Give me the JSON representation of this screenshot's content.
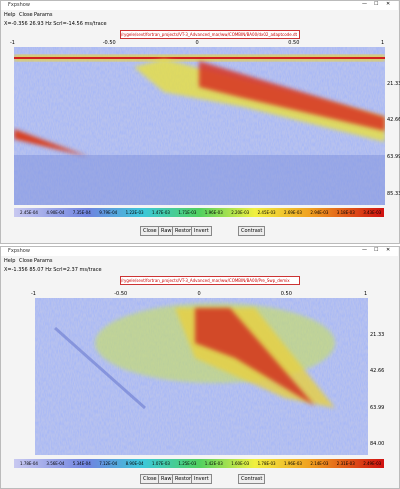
{
  "windows": [
    {
      "title": "Fxpshow",
      "menu": [
        "Help",
        "Close",
        "Params"
      ],
      "status": "X=-0.356  26.93 Hz  Scrl=-14.56 ms/trace",
      "path": "/rygele/sevt/fortran_projects/VT-3_Advanced_mar/ww/COMBIN/BA00/dx02_adaptcode.dt",
      "x_ticks": [
        "-1",
        "-0.50",
        "0",
        "0.50",
        "1"
      ],
      "y_ticks": [
        "21.33",
        "42.66",
        "63.99",
        "85.33"
      ],
      "colorbar_labels": [
        "2.45E-04",
        "4.90E-04",
        "7.35E-04",
        "9.79E-04",
        "1.22E-03",
        "1.47E-03",
        "1.71E-03",
        "1.96E-03",
        "2.20E-03",
        "2.45E-03",
        "2.69E-03",
        "2.94E-03",
        "3.18E-03",
        "3.43E-03"
      ],
      "buttons": [
        "Close",
        "Raw",
        "Restore",
        "Invert",
        "Contrast"
      ]
    },
    {
      "title": "Fxpshow",
      "menu": [
        "Help",
        "Close",
        "Params"
      ],
      "status": "X=-1.356  85.07 Hz  Scrl=2.37 ms/trace",
      "path": "/rygele/sevt/fortran_projects/VT-3_Advanced_mar/ww/COMBIN/BA00/Pre_Swp_demix",
      "x_ticks": [
        "-1",
        "-0.50",
        "0",
        "0.50",
        "1"
      ],
      "y_ticks": [
        "21.33",
        "42.66",
        "63.99",
        "84.00"
      ],
      "colorbar_labels": [
        "1.78E-04",
        "3.56E-04",
        "5.34E-04",
        "7.12E-04",
        "8.90E-04",
        "1.07E-03",
        "1.25E-03",
        "1.42E-03",
        "1.60E-03",
        "1.78E-03",
        "1.96E-03",
        "2.14E-03",
        "2.31E-03",
        "2.49E-03"
      ],
      "buttons": [
        "Close",
        "Raw",
        "Restore",
        "Invert",
        "Contrast"
      ]
    }
  ]
}
